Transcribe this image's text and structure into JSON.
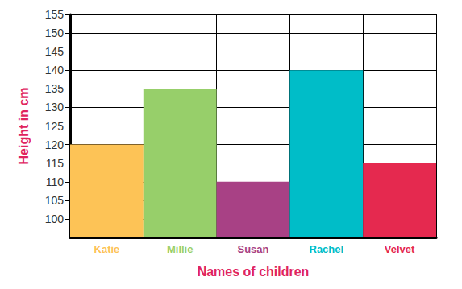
{
  "chart_data": {
    "type": "bar",
    "x_label": "Names of children",
    "y_label": "Height in cm",
    "categories": [
      "Katie",
      "Millie",
      "Susan",
      "Rachel",
      "Velvet"
    ],
    "values": [
      120,
      135,
      110,
      140,
      115
    ],
    "colors": [
      "#fdc356",
      "#97cf6a",
      "#a84185",
      "#00bdc8",
      "#e5294f"
    ],
    "ylim": [
      95,
      155
    ],
    "yticks": [
      100,
      105,
      110,
      115,
      120,
      125,
      130,
      135,
      140,
      145,
      150,
      155
    ],
    "grid": true
  }
}
